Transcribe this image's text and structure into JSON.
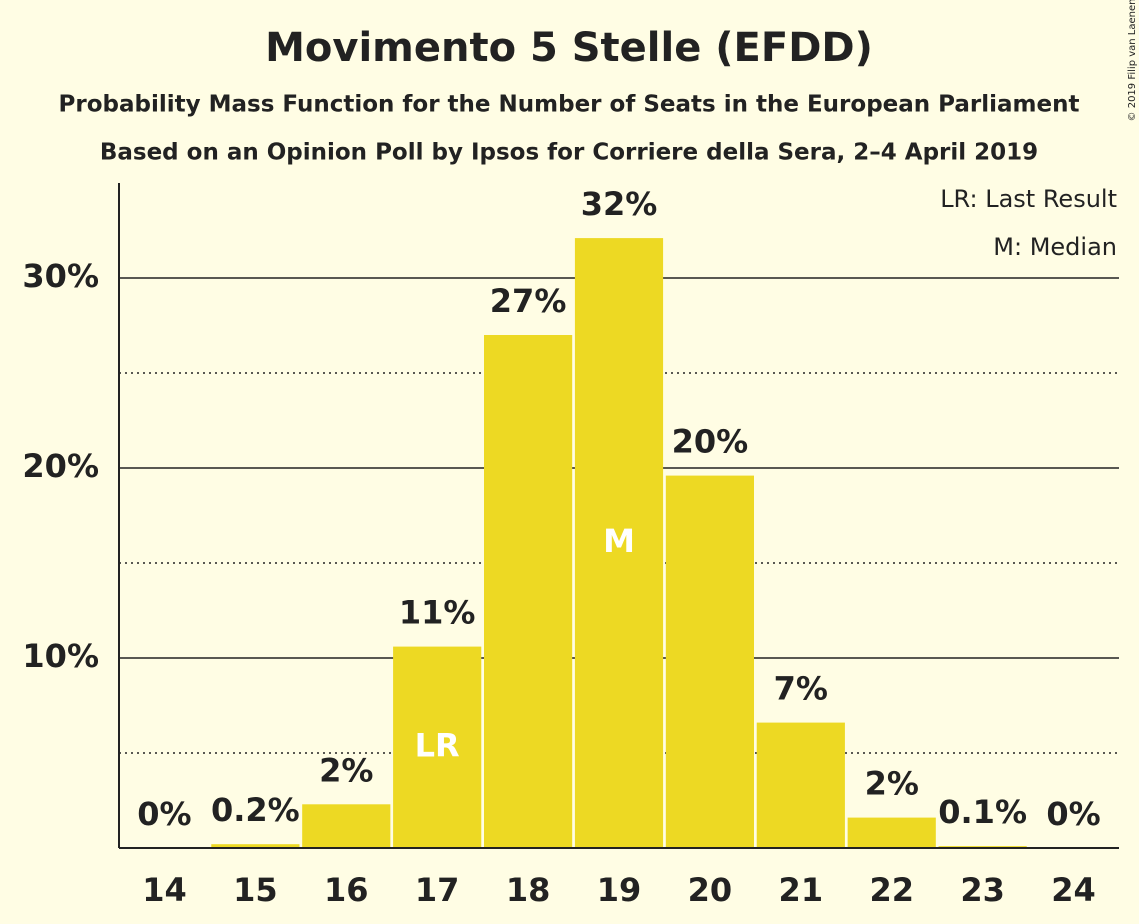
{
  "chart_data": {
    "type": "bar",
    "title": "Movimento 5 Stelle (EFDD)",
    "subtitle": "Probability Mass Function for the Number of Seats in the European Parliament",
    "subtitle2": "Based on an Opinion Poll by Ipsos for Corriere della Sera, 2–4 April 2019",
    "copyright": "© 2019 Filip van Laenen",
    "legend": [
      "LR: Last Result",
      "M: Median"
    ],
    "categories": [
      "14",
      "15",
      "16",
      "17",
      "18",
      "19",
      "20",
      "21",
      "22",
      "23",
      "24"
    ],
    "values": [
      0,
      0.2,
      2.3,
      10.6,
      27,
      32.1,
      19.6,
      6.6,
      1.6,
      0.1,
      0
    ],
    "value_labels": [
      "0%",
      "0.2%",
      "2%",
      "11%",
      "27%",
      "32%",
      "20%",
      "7%",
      "2%",
      "0.1%",
      "0%"
    ],
    "annotations": [
      {
        "label": "LR",
        "category": "17"
      },
      {
        "label": "M",
        "category": "19"
      }
    ],
    "color": "#edd923",
    "ylim": [
      0,
      35
    ],
    "yticks": [
      {
        "value": 10,
        "label": "10%"
      },
      {
        "value": 20,
        "label": "20%"
      },
      {
        "value": 30,
        "label": "30%"
      }
    ],
    "minor_yticks": [
      5,
      15,
      25
    ],
    "grid": true
  }
}
